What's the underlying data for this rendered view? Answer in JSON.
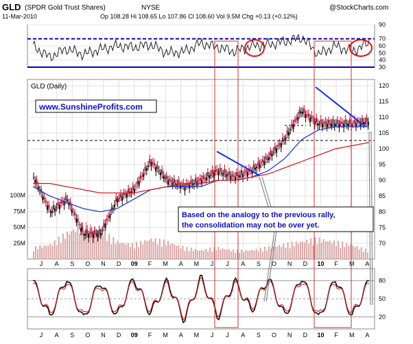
{
  "header": {
    "ticker": "GLD",
    "name": "(SPDR Gold Trust Shares)",
    "exchange": "NYSE",
    "credit": "@StockCharts.com",
    "date": "11-Mar-2010",
    "quote": "Op 108.28  Hi 108.65  Lo 107.86  Cl 108.60  Vol 9.5M  Chg +0.13 (+0.12%)"
  },
  "main_panel_label": "GLD (Daily)",
  "watermark": "www.SunshineProfits.com",
  "annotation": [
    "Based on the analogy to the previous rally,",
    "the consolidation may not be over yet."
  ],
  "colors": {
    "price_up": "#000000",
    "price_down": "#c0002a",
    "ma_short": "#1a3fd0",
    "ma_long": "#d82020",
    "highlight_box": "#c8302a",
    "trendline": "#1030e0",
    "volume": "#d9a7a7",
    "annotation_text": "#1010c8"
  },
  "chart_data": [
    {
      "type": "line",
      "panel": "RSI (top)",
      "ylim": [
        30,
        90
      ],
      "y_ticks": [
        90,
        70,
        60,
        50,
        40,
        30
      ],
      "reference_lines": [
        {
          "value": 70,
          "style": "dashed",
          "color": "#0000c0"
        },
        {
          "value": 30,
          "style": "solid",
          "color": "#0000c0"
        }
      ],
      "x": [
        "2008-07",
        "2008-08",
        "2008-09",
        "2008-10",
        "2008-11",
        "2008-12",
        "2009-01",
        "2009-02",
        "2009-03",
        "2009-04",
        "2009-05",
        "2009-06",
        "2009-07",
        "2009-08",
        "2009-09",
        "2009-10",
        "2009-11",
        "2009-12",
        "2010-01",
        "2010-02",
        "2010-03"
      ],
      "series": [
        {
          "values": [
            60,
            44,
            56,
            48,
            55,
            60,
            58,
            62,
            50,
            52,
            64,
            58,
            52,
            60,
            62,
            66,
            72,
            48,
            60,
            52,
            65
          ]
        }
      ],
      "circled_regions": [
        "2009-08",
        "2010-03"
      ]
    },
    {
      "type": "line",
      "panel": "GLD (Daily) price",
      "title": "GLD (Daily)",
      "ylim": [
        65,
        122
      ],
      "y_ticks": [
        120,
        115,
        110,
        105,
        100,
        95,
        90,
        85,
        80,
        75,
        70
      ],
      "x_ticks": [
        "J",
        "A",
        "S",
        "O",
        "N",
        "D",
        "09",
        "F",
        "M",
        "A",
        "M",
        "J",
        "J",
        "A",
        "S",
        "O",
        "N",
        "D",
        "10",
        "F",
        "M",
        "A"
      ],
      "x": [
        "2008-07",
        "2008-08",
        "2008-09",
        "2008-10",
        "2008-11",
        "2008-12",
        "2009-01",
        "2009-02",
        "2009-03",
        "2009-04",
        "2009-05",
        "2009-06",
        "2009-07",
        "2009-08",
        "2009-09",
        "2009-10",
        "2009-11",
        "2009-12",
        "2010-01",
        "2010-02",
        "2010-03"
      ],
      "series": [
        {
          "values": [
            91,
            80,
            84,
            73,
            73,
            84,
            87,
            96,
            90,
            88,
            90,
            93,
            91,
            93,
            97,
            103,
            112,
            108,
            108,
            108,
            108.6
          ]
        },
        {
          "values": [
            88,
            85,
            83,
            81,
            80,
            81,
            84,
            87,
            88,
            88,
            88,
            90,
            90,
            91,
            93,
            97,
            103,
            106,
            107,
            107,
            107
          ]
        },
        {
          "values": [
            89,
            89,
            88,
            87,
            86,
            86,
            86,
            87,
            88,
            89,
            89,
            90,
            90,
            91,
            92,
            94,
            96,
            98,
            100,
            101,
            102
          ]
        }
      ],
      "reference_lines": [
        {
          "value": 100,
          "style": "dashed",
          "color": "#000000"
        }
      ],
      "annotations": [
        "Based on the analogy to the previous rally, the consolidation may not be over yet."
      ]
    },
    {
      "type": "bar",
      "panel": "Volume",
      "y_ticks": [
        "100M",
        "75M",
        "50M",
        "25M"
      ],
      "ylim": [
        0,
        100
      ],
      "x": [
        "2008-07",
        "2008-08",
        "2008-09",
        "2008-10",
        "2008-11",
        "2008-12",
        "2009-01",
        "2009-02",
        "2009-03",
        "2009-04",
        "2009-05",
        "2009-06",
        "2009-07",
        "2009-08",
        "2009-09",
        "2009-10",
        "2009-11",
        "2009-12",
        "2010-01",
        "2010-02",
        "2010-03"
      ],
      "values": [
        20,
        25,
        45,
        60,
        50,
        30,
        25,
        35,
        30,
        20,
        15,
        20,
        15,
        15,
        20,
        25,
        30,
        35,
        30,
        25,
        15
      ]
    },
    {
      "type": "line",
      "panel": "Stochastic (bottom)",
      "ylim": [
        0,
        100
      ],
      "y_ticks": [
        80,
        50,
        20
      ],
      "x_ticks": [
        "J",
        "A",
        "S",
        "O",
        "N",
        "D",
        "09",
        "F",
        "M",
        "A",
        "M",
        "J",
        "J",
        "A",
        "S",
        "O",
        "N",
        "D",
        "10",
        "F",
        "M",
        "A"
      ],
      "series": [
        {
          "values": [
            80,
            20,
            85,
            15,
            80,
            20,
            85,
            25,
            80,
            15,
            85,
            20,
            80,
            30,
            85,
            20,
            88,
            15,
            85,
            20,
            80
          ]
        },
        {
          "values": [
            75,
            25,
            80,
            20,
            75,
            25,
            80,
            30,
            75,
            20,
            80,
            25,
            75,
            35,
            80,
            25,
            83,
            20,
            80,
            25,
            75
          ]
        }
      ]
    }
  ]
}
